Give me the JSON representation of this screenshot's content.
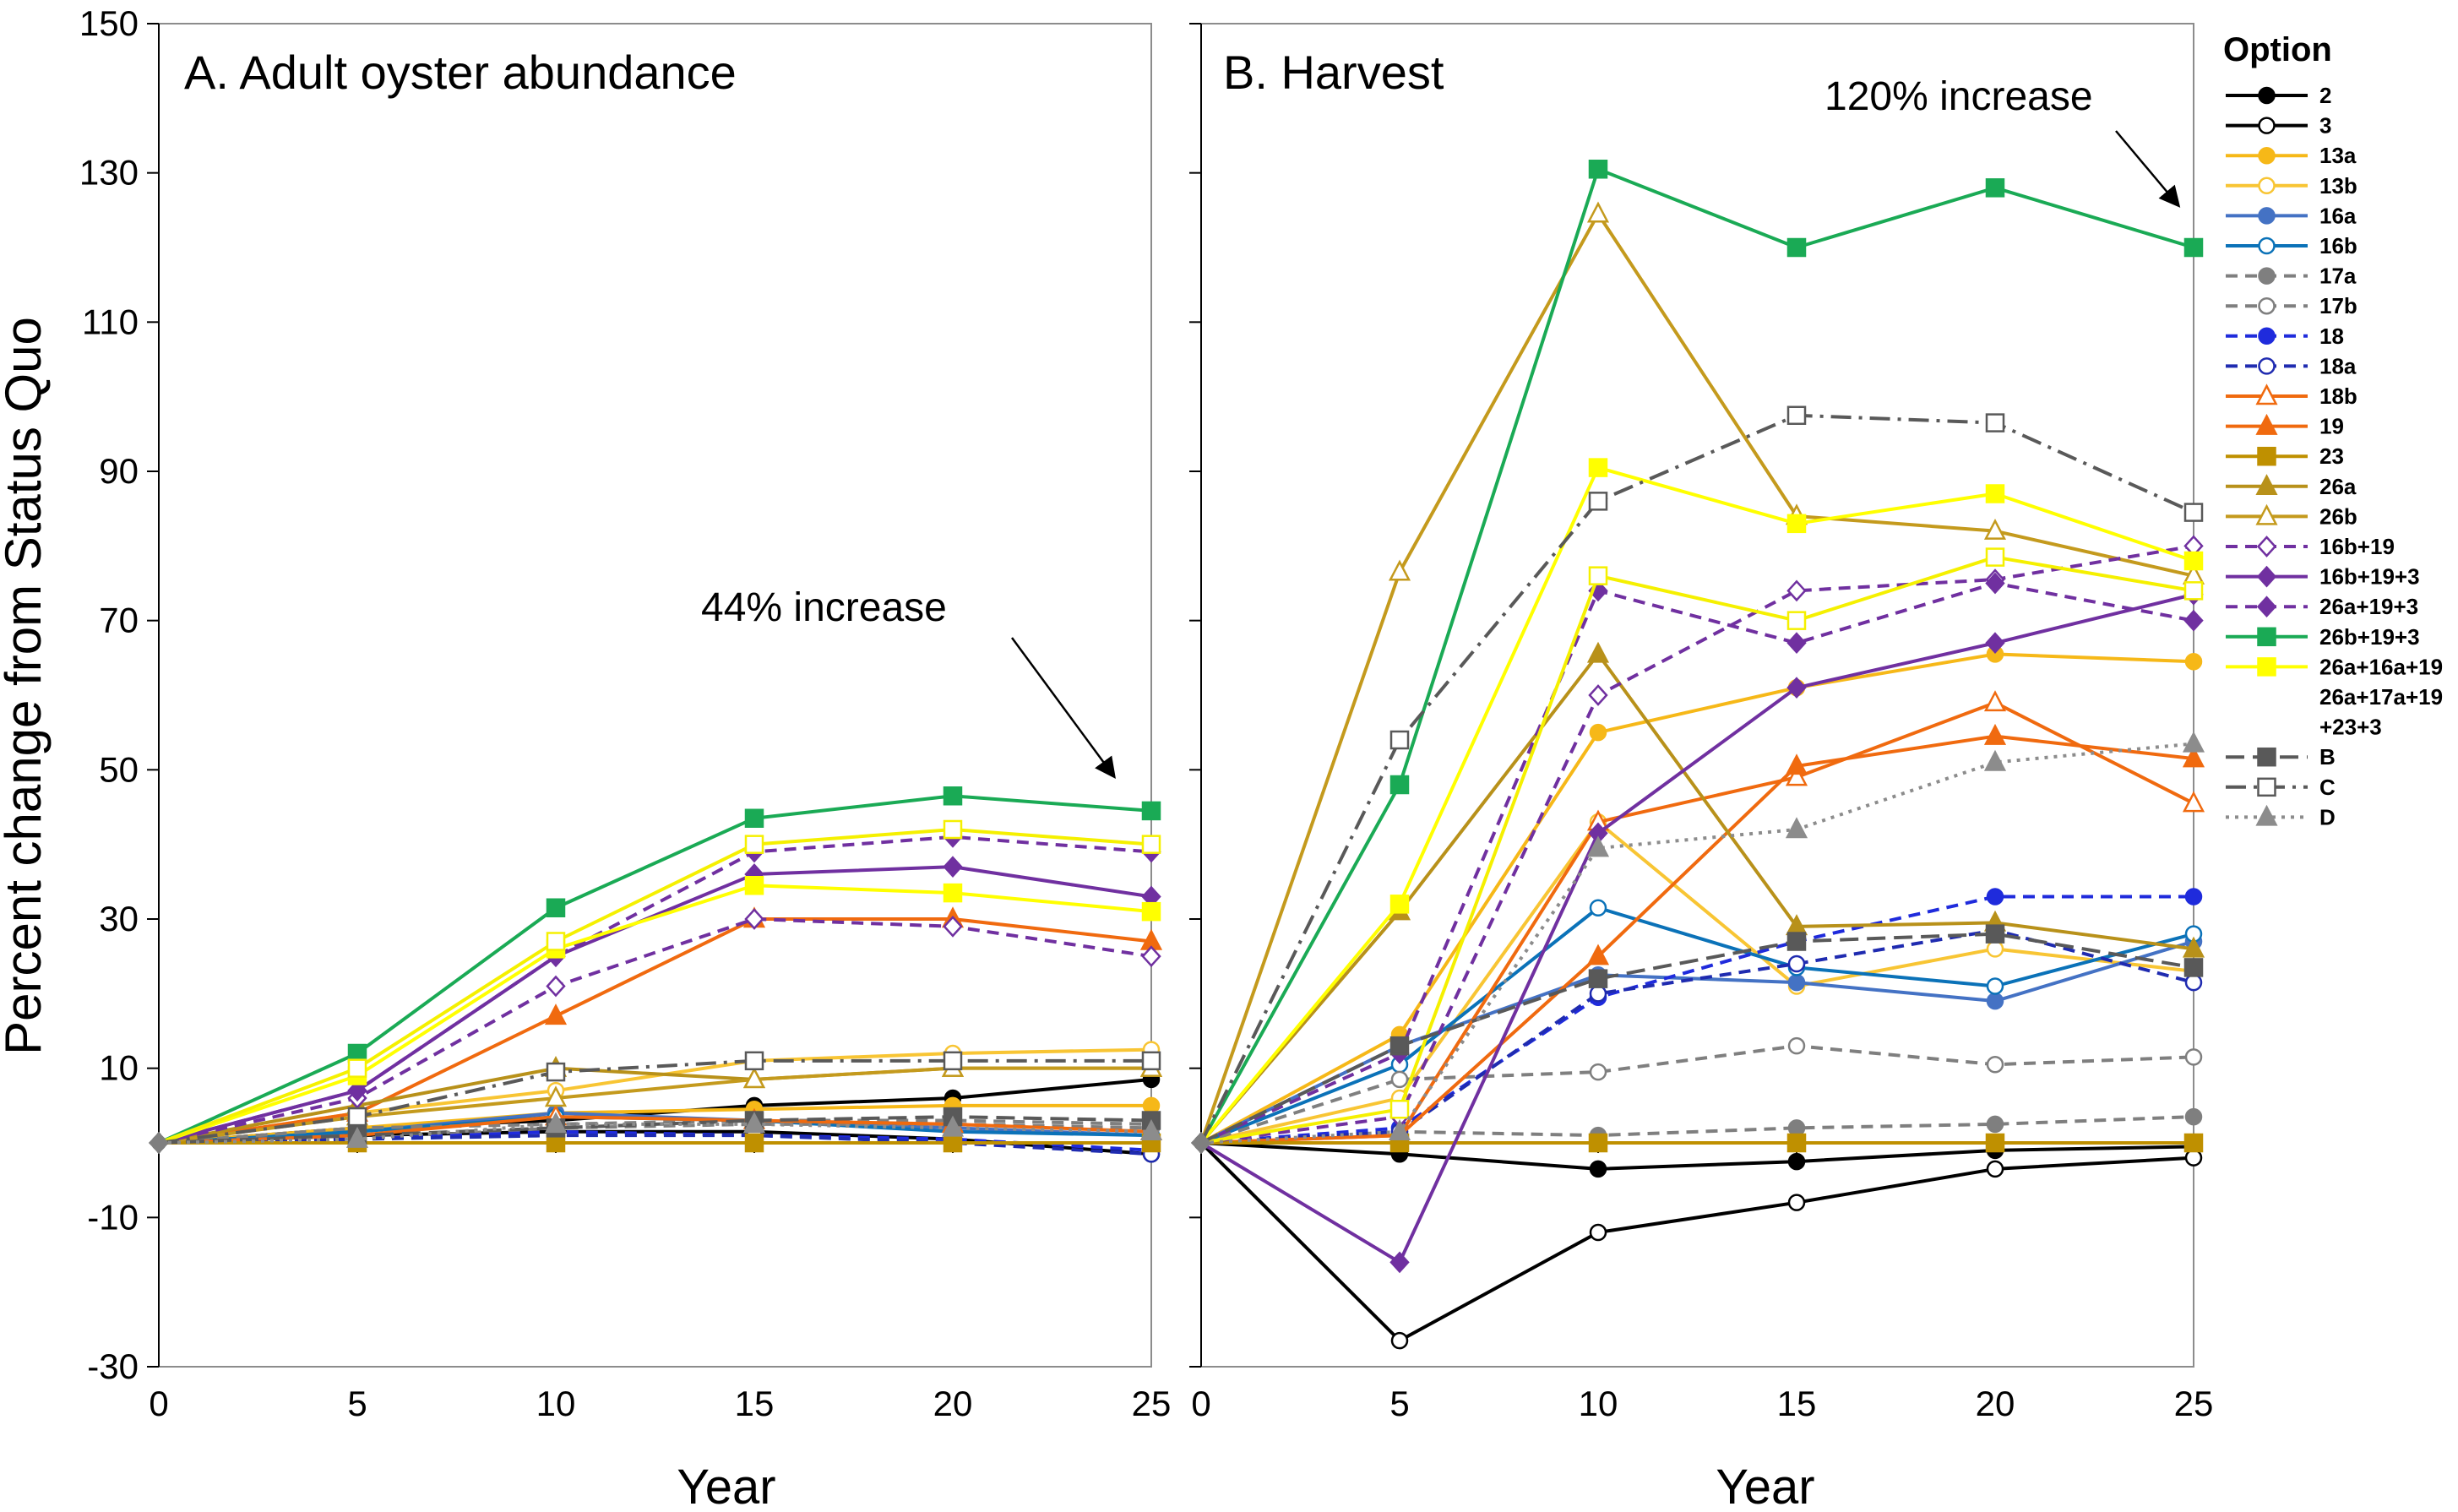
{
  "chart_data": [
    {
      "type": "line",
      "panel": "A",
      "title": "A. Adult oyster abundance",
      "ylabel": "Percent change from Status Quo",
      "xlabel": "Year",
      "x": [
        0,
        5,
        10,
        15,
        20,
        25
      ],
      "ylim": [
        -30,
        150
      ],
      "yticks": [
        -30,
        -10,
        10,
        30,
        50,
        70,
        90,
        110,
        130,
        150
      ],
      "xticks": [
        0,
        5,
        10,
        15,
        20,
        25
      ],
      "annotation": "44% increase",
      "series": [
        {
          "name": "2",
          "values": [
            0,
            2,
            3,
            5,
            6,
            8.5
          ]
        },
        {
          "name": "3",
          "values": [
            0,
            1,
            1.5,
            1.5,
            0.5,
            -1.5
          ]
        },
        {
          "name": "13a",
          "values": [
            0,
            2,
            4,
            4.5,
            5,
            5
          ]
        },
        {
          "name": "13b",
          "values": [
            0,
            4,
            7,
            11,
            12,
            12.5
          ]
        },
        {
          "name": "16a",
          "values": [
            0,
            1.5,
            4,
            3,
            2,
            1
          ]
        },
        {
          "name": "16b",
          "values": [
            0,
            1.5,
            3.5,
            3,
            1.5,
            1
          ]
        },
        {
          "name": "17a",
          "values": [
            0,
            0.5,
            2,
            2.5,
            2.5,
            2
          ]
        },
        {
          "name": "17b",
          "values": [
            0,
            2,
            2.5,
            3,
            3,
            2.5
          ]
        },
        {
          "name": "18",
          "values": [
            0,
            0.5,
            1.5,
            1,
            0.5,
            -1
          ]
        },
        {
          "name": "18a",
          "values": [
            0,
            0.5,
            1,
            1,
            0,
            -1.5
          ]
        },
        {
          "name": "18b",
          "values": [
            0,
            1,
            3.5,
            3,
            2.5,
            1.5
          ]
        },
        {
          "name": "19",
          "values": [
            0,
            4,
            17,
            30,
            30,
            27
          ]
        },
        {
          "name": "23",
          "values": [
            0,
            0,
            0,
            0,
            0,
            0
          ]
        },
        {
          "name": "26a",
          "values": [
            0,
            5,
            10,
            8.5,
            10,
            10
          ]
        },
        {
          "name": "26b",
          "values": [
            0,
            3.5,
            6,
            8.5,
            10,
            10
          ]
        },
        {
          "name": "16b+19",
          "values": [
            0,
            6,
            21,
            30,
            29,
            25
          ]
        },
        {
          "name": "16b+19+3",
          "values": [
            0,
            7,
            25,
            36,
            37,
            33
          ]
        },
        {
          "name": "26a+19+3",
          "values": [
            0,
            7,
            25,
            39,
            41,
            39
          ]
        },
        {
          "name": "26b+19+3",
          "values": [
            0,
            12,
            31.5,
            43.5,
            46.5,
            44.5
          ]
        },
        {
          "name": "26a+16a+19",
          "values": [
            0,
            9,
            26,
            34.5,
            33.5,
            31
          ]
        },
        {
          "name": "26a+17a+19+23+3",
          "values": [
            0,
            10,
            27,
            40,
            42,
            40
          ]
        },
        {
          "name": "B",
          "values": [
            0,
            1,
            2,
            3,
            3.5,
            3
          ]
        },
        {
          "name": "C",
          "values": [
            0,
            3.5,
            9.5,
            11,
            11,
            11
          ]
        },
        {
          "name": "D",
          "values": [
            0,
            0.5,
            2.5,
            2.5,
            2,
            1.5
          ]
        }
      ]
    },
    {
      "type": "line",
      "panel": "B",
      "title": "B. Harvest",
      "xlabel": "Year",
      "x": [
        0,
        5,
        10,
        15,
        20,
        25
      ],
      "ylim": [
        -30,
        150
      ],
      "xticks": [
        0,
        5,
        10,
        15,
        20,
        25
      ],
      "annotation": "120% increase",
      "legend_title": "Option",
      "series": [
        {
          "name": "2",
          "values": [
            0,
            -1.5,
            -3.5,
            -2.5,
            -1,
            -0.5
          ]
        },
        {
          "name": "3",
          "values": [
            0,
            -26.5,
            -12,
            -8,
            -3.5,
            -2
          ]
        },
        {
          "name": "13a",
          "values": [
            0,
            14.5,
            55,
            61,
            65.5,
            64.5
          ]
        },
        {
          "name": "13b",
          "values": [
            0,
            6,
            43,
            21,
            26,
            23
          ]
        },
        {
          "name": "16a",
          "values": [
            0,
            13,
            22.5,
            21.5,
            19,
            27
          ]
        },
        {
          "name": "16b",
          "values": [
            0,
            10.5,
            31.5,
            23.5,
            21,
            28
          ]
        },
        {
          "name": "17a",
          "values": [
            0,
            1.5,
            1,
            2,
            2.5,
            3.5
          ]
        },
        {
          "name": "17b",
          "values": [
            0,
            8.5,
            9.5,
            13,
            10.5,
            11.5
          ]
        },
        {
          "name": "18",
          "values": [
            0,
            2,
            19.5,
            27,
            33,
            33
          ]
        },
        {
          "name": "18a",
          "values": [
            0,
            1.5,
            20,
            24,
            28.5,
            21.5
          ]
        },
        {
          "name": "18b",
          "values": [
            0,
            1,
            43,
            49,
            59,
            45.5
          ]
        },
        {
          "name": "19",
          "values": [
            0,
            1,
            25,
            50.5,
            54.5,
            51.5
          ]
        },
        {
          "name": "23",
          "values": [
            0,
            0,
            0,
            0,
            0,
            0
          ]
        },
        {
          "name": "26a",
          "values": [
            0,
            31,
            65.5,
            29,
            29.5,
            26
          ]
        },
        {
          "name": "26b",
          "values": [
            0,
            76.5,
            124.5,
            84,
            82,
            76
          ]
        },
        {
          "name": "16b+19",
          "values": [
            0,
            3.5,
            60,
            74,
            75.5,
            80
          ]
        },
        {
          "name": "16b+19+3",
          "values": [
            0,
            -16,
            41.5,
            61,
            67,
            73.5
          ]
        },
        {
          "name": "26a+19+3",
          "values": [
            0,
            12,
            74,
            67,
            75,
            70
          ]
        },
        {
          "name": "26b+19+3",
          "values": [
            0,
            48,
            130.5,
            120,
            128,
            120
          ]
        },
        {
          "name": "26a+16a+19",
          "values": [
            0,
            32,
            90.5,
            83,
            87,
            78
          ]
        },
        {
          "name": "26a+17a+19+23+3",
          "values": [
            0,
            4.5,
            76,
            70,
            78.5,
            74
          ]
        },
        {
          "name": "B",
          "values": [
            0,
            13,
            22,
            27,
            28,
            23.5
          ]
        },
        {
          "name": "C",
          "values": [
            0,
            54,
            86,
            97.5,
            96.5,
            84.5
          ]
        },
        {
          "name": "D",
          "values": [
            0,
            1.5,
            39.5,
            42,
            51,
            53.5
          ]
        }
      ]
    }
  ],
  "styles": {
    "2": {
      "color": "#000000",
      "marker": "circle",
      "fill": "solid",
      "dash": "solid"
    },
    "3": {
      "color": "#000000",
      "marker": "circle",
      "fill": "open",
      "dash": "solid"
    },
    "13a": {
      "color": "#f6b818",
      "marker": "circle",
      "fill": "solid",
      "dash": "solid"
    },
    "13b": {
      "color": "#f8c534",
      "marker": "circle",
      "fill": "open",
      "dash": "solid"
    },
    "16a": {
      "color": "#4472c4",
      "marker": "circle",
      "fill": "solid",
      "dash": "solid"
    },
    "16b": {
      "color": "#0b72b8",
      "marker": "circle",
      "fill": "open",
      "dash": "solid"
    },
    "17a": {
      "color": "#7f7f7f",
      "marker": "circle",
      "fill": "solid",
      "dash": "dash"
    },
    "17b": {
      "color": "#7f7f7f",
      "marker": "circle",
      "fill": "open",
      "dash": "dash"
    },
    "18": {
      "color": "#1f2bdc",
      "marker": "circle",
      "fill": "solid",
      "dash": "dash"
    },
    "18a": {
      "color": "#1f2bb0",
      "marker": "circle",
      "fill": "open",
      "dash": "dash"
    },
    "18b": {
      "color": "#f06a0f",
      "marker": "triangle",
      "fill": "open",
      "dash": "solid"
    },
    "19": {
      "color": "#f06a0f",
      "marker": "triangle",
      "fill": "solid",
      "dash": "solid"
    },
    "23": {
      "color": "#bf9000",
      "marker": "square",
      "fill": "solid",
      "dash": "solid"
    },
    "26a": {
      "color": "#b8911a",
      "marker": "triangle",
      "fill": "solid",
      "dash": "solid"
    },
    "26b": {
      "color": "#c49a1d",
      "marker": "triangle",
      "fill": "open",
      "dash": "solid"
    },
    "16b+19": {
      "color": "#7030a0",
      "marker": "diamond",
      "fill": "open",
      "dash": "dash"
    },
    "16b+19+3": {
      "color": "#7030a0",
      "marker": "diamond",
      "fill": "solid",
      "dash": "solid"
    },
    "26a+19+3": {
      "color": "#7030a0",
      "marker": "diamond",
      "fill": "solid",
      "dash": "dash"
    },
    "26b+19+3": {
      "color": "#1aaa55",
      "marker": "square",
      "fill": "solid",
      "dash": "solid"
    },
    "26a+16a+19": {
      "color": "#ffff00",
      "marker": "square",
      "fill": "solid",
      "dash": "solid"
    },
    "26a+17a+19+23+3": {
      "color": "#f5f000",
      "marker": "square",
      "fill": "open",
      "dash": "solid"
    },
    "B": {
      "color": "#595959",
      "marker": "square",
      "fill": "solid",
      "dash": "longdash"
    },
    "C": {
      "color": "#595959",
      "marker": "square",
      "fill": "open",
      "dash": "dashdot"
    },
    "D": {
      "color": "#8c8c8c",
      "marker": "triangle",
      "fill": "solid",
      "dash": "dot"
    }
  },
  "legend": {
    "title": "Option",
    "items": [
      "2",
      "3",
      "13a",
      "13b",
      "16a",
      "16b",
      "17a",
      "17b",
      "18",
      "18a",
      "18b",
      "19",
      "23",
      "26a",
      "26b",
      "16b+19",
      "16b+19+3",
      "26a+19+3",
      "26b+19+3",
      "26a+16a+19",
      "26a+17a+19",
      "+23+3",
      "B",
      "C",
      "D"
    ]
  }
}
